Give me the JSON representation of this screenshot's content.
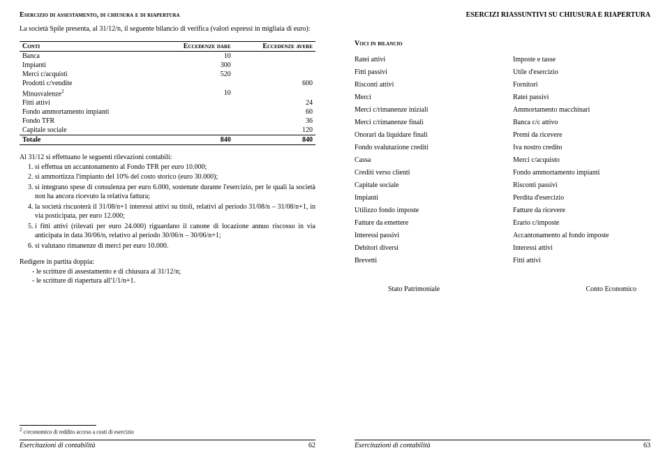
{
  "left": {
    "title": "Esercizio di assestamento, di chiusura e di riapertura",
    "intro": "La società Spile presenta, al 31/12/n, il seguente bilancio di verifica (valori espressi in migliaia di euro):",
    "table": {
      "headers": {
        "c0": "Conti",
        "c1": "Eccedenze dare",
        "c2": "Eccedenze avere"
      },
      "rows": [
        {
          "name": "Banca",
          "dare": "10",
          "avere": ""
        },
        {
          "name": "Impianti",
          "dare": "300",
          "avere": ""
        },
        {
          "name": "Merci c/acquisti",
          "dare": "520",
          "avere": ""
        },
        {
          "name": "Prodotti c/vendite",
          "dare": "",
          "avere": "600"
        },
        {
          "name": "Minusvalenze",
          "sup": "2",
          "dare": "10",
          "avere": ""
        },
        {
          "name": "Fitti attivi",
          "dare": "",
          "avere": "24"
        },
        {
          "name": "Fondo ammortamento impianti",
          "dare": "",
          "avere": "60"
        },
        {
          "name": "Fondo TFR",
          "dare": "",
          "avere": "36"
        },
        {
          "name": "Capitale sociale",
          "dare": "",
          "avere": "120"
        }
      ],
      "total": {
        "name": "Totale",
        "dare": "840",
        "avere": "840"
      }
    },
    "notes_intro": "Al 31/12 si effettuano le seguenti rilevazioni contabili:",
    "notes": [
      "si effettua un accantonamento al Fondo TFR per euro 10.000;",
      "si ammortizza l'impianto del 10% del costo storico (euro 30.000);",
      "si integrano spese di consulenza per euro 6.000, sostenute durante l'esercizio, per le quali la società non ha ancora ricevuto la relativa fattura;",
      "la società riscuoterà il 31/08/n+1 interessi attivi su titoli, relativi al periodo 31/08/n – 31/08/n+1, in via posticipata, per euro 12.000;",
      "i fitti attivi (rilevati per euro 24.000) riguardano il canone di locazione annuo riscosso in via anticipata in data 30/06/n, relativo al periodo 30/06/n – 30/06/n+1;",
      "si valutano rimanenze di merci per euro 10.000."
    ],
    "redigere_title": "Redigere in partita doppia:",
    "redigere": [
      "le scritture di assestamento e di chiusura al 31/12/n;",
      "le scritture di riapertura all'1/1/n+1."
    ],
    "footnote_sup": "2",
    "footnote": " c/economico di reddito acceso a costi di esercizio",
    "footer_book": "Esercitazioni di contabilità",
    "footer_page": "62"
  },
  "right": {
    "title": "ESERCIZI RIASSUNTIVI SU CHIUSURA E RIAPERTURA",
    "subtitle": "Voci in bilancio",
    "voci_left": [
      "Ratei attivi",
      "Fitti passivi",
      "Risconti attivi",
      "Merci",
      "Merci c/rimanenze iniziali",
      "Merci c/rimanenze finali",
      "Onorari da liquidare finali",
      "Fondo svalutazione crediti",
      "Cassa",
      "Crediti verso clienti",
      "Capitale sociale",
      "Impianti",
      "Utilizzo fondo imposte",
      "Fatture da emettere",
      "Interessi passivi",
      "Debitori diversi",
      "Brevetti"
    ],
    "voci_right": [
      "Imposte e tasse",
      "Utile d'esercizio",
      "Fornitori",
      "Ratei passivi",
      "Ammortamento macchinari",
      "Banca c/c attivo",
      "Premi da ricevere",
      "Iva nostro credito",
      "Merci c/acquisto",
      "Fondo ammortamento impianti",
      "Risconti passivi",
      "Perdita d'esercizio",
      "Fatture da ricevere",
      "Erario c/imposte",
      "Accantonamento al fondo imposte",
      "Interessi attivi",
      "Fitti attivi"
    ],
    "bottom_left": "Stato Patrimoniale",
    "bottom_right": "Conto Economico",
    "footer_book": "Esercitazioni di contabilità",
    "footer_page": "63"
  }
}
